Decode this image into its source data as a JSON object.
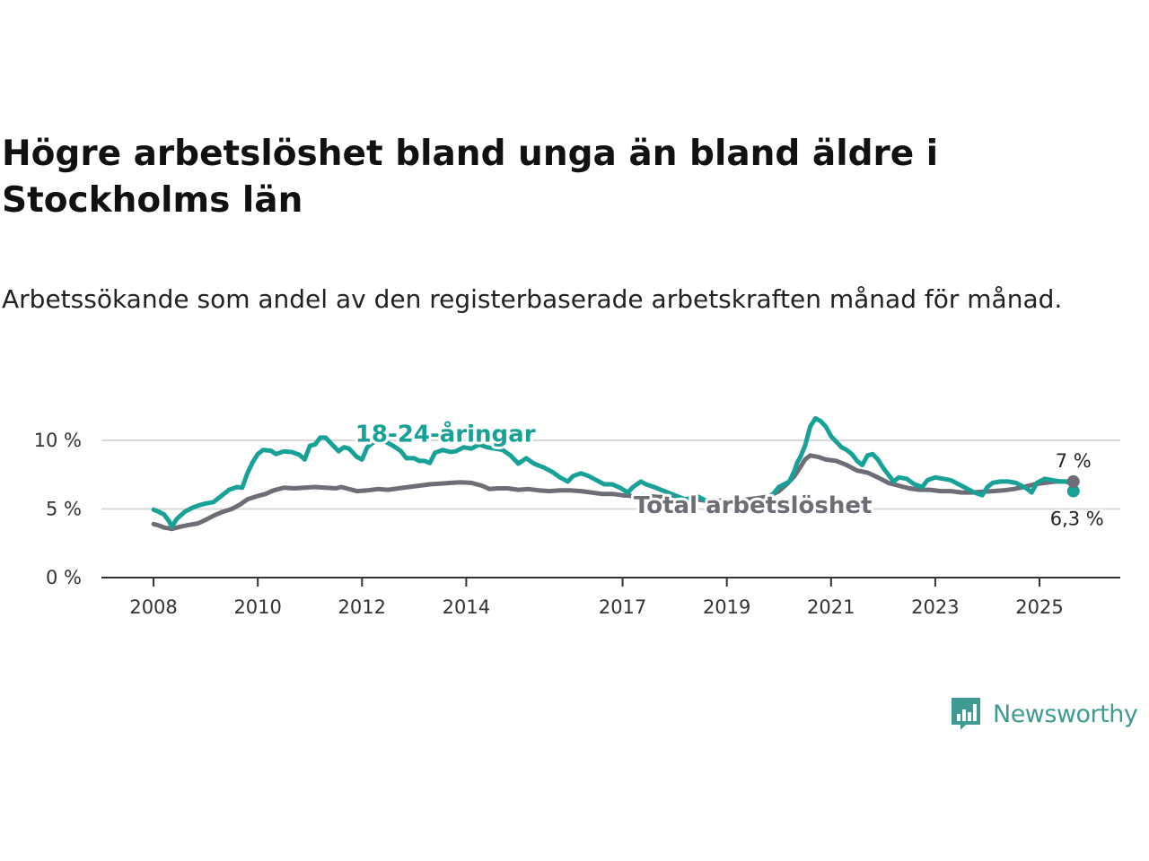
{
  "header": {
    "title": "Högre arbetslöshet bland unga än bland äldre i Stockholms län",
    "subtitle": "Arbetssökande som andel av den registerbaserade arbetskraften månad för månad."
  },
  "brand": {
    "name": "Newsworthy",
    "icon": "bar-chart-speech-bubble-icon",
    "color": "#3f9a92"
  },
  "chart_data": {
    "type": "line",
    "x_unit": "year",
    "xlim": [
      2007.0,
      2026.2
    ],
    "ylim": [
      0,
      10
    ],
    "y_ticks": [
      0,
      5,
      10
    ],
    "y_tick_labels": [
      "0 %",
      "5 %",
      "10 %"
    ],
    "x_ticks": [
      2008,
      2010,
      2012,
      2014,
      2017,
      2019,
      2021,
      2023,
      2025
    ],
    "x_tick_labels": [
      "2008",
      "2010",
      "2012",
      "2014",
      "2017",
      "2019",
      "2021",
      "2023",
      "2025"
    ],
    "grid": true,
    "series": [
      {
        "name": "18-24-åringar",
        "color": "#17a197",
        "end_label": "6,3 %",
        "points": [
          [
            2008.0,
            4.95
          ],
          [
            2008.1,
            4.8
          ],
          [
            2008.2,
            4.6
          ],
          [
            2008.3,
            4.1
          ],
          [
            2008.35,
            3.7
          ],
          [
            2008.45,
            4.3
          ],
          [
            2008.6,
            4.8
          ],
          [
            2008.75,
            5.1
          ],
          [
            2008.9,
            5.3
          ],
          [
            2009.0,
            5.4
          ],
          [
            2009.15,
            5.5
          ],
          [
            2009.3,
            5.95
          ],
          [
            2009.45,
            6.4
          ],
          [
            2009.6,
            6.6
          ],
          [
            2009.7,
            6.55
          ],
          [
            2009.8,
            7.6
          ],
          [
            2009.9,
            8.4
          ],
          [
            2010.0,
            9.0
          ],
          [
            2010.1,
            9.3
          ],
          [
            2010.25,
            9.25
          ],
          [
            2010.35,
            9.0
          ],
          [
            2010.5,
            9.2
          ],
          [
            2010.65,
            9.15
          ],
          [
            2010.8,
            8.95
          ],
          [
            2010.9,
            8.6
          ],
          [
            2011.0,
            9.6
          ],
          [
            2011.1,
            9.7
          ],
          [
            2011.2,
            10.2
          ],
          [
            2011.3,
            10.2
          ],
          [
            2011.45,
            9.6
          ],
          [
            2011.55,
            9.2
          ],
          [
            2011.65,
            9.5
          ],
          [
            2011.75,
            9.4
          ],
          [
            2011.9,
            8.8
          ],
          [
            2012.0,
            8.6
          ],
          [
            2012.1,
            9.5
          ],
          [
            2012.2,
            9.8
          ],
          [
            2012.3,
            10.1
          ],
          [
            2012.45,
            9.9
          ],
          [
            2012.6,
            9.6
          ],
          [
            2012.75,
            9.2
          ],
          [
            2012.85,
            8.7
          ],
          [
            2013.0,
            8.7
          ],
          [
            2013.1,
            8.5
          ],
          [
            2013.2,
            8.5
          ],
          [
            2013.3,
            8.35
          ],
          [
            2013.4,
            9.1
          ],
          [
            2013.55,
            9.3
          ],
          [
            2013.7,
            9.15
          ],
          [
            2013.8,
            9.2
          ],
          [
            2013.95,
            9.5
          ],
          [
            2014.1,
            9.4
          ],
          [
            2014.25,
            9.7
          ],
          [
            2014.4,
            9.5
          ],
          [
            2014.55,
            9.4
          ],
          [
            2014.7,
            9.3
          ],
          [
            2014.85,
            8.9
          ],
          [
            2015.0,
            8.3
          ],
          [
            2015.15,
            8.7
          ],
          [
            2015.3,
            8.3
          ],
          [
            2015.5,
            8.0
          ],
          [
            2015.65,
            7.7
          ],
          [
            2015.8,
            7.3
          ],
          [
            2015.95,
            7.0
          ],
          [
            2016.05,
            7.4
          ],
          [
            2016.2,
            7.6
          ],
          [
            2016.35,
            7.4
          ],
          [
            2016.5,
            7.1
          ],
          [
            2016.65,
            6.8
          ],
          [
            2016.8,
            6.8
          ],
          [
            2016.95,
            6.55
          ],
          [
            2017.1,
            6.2
          ],
          [
            2017.2,
            6.6
          ],
          [
            2017.35,
            7.0
          ],
          [
            2017.45,
            6.8
          ],
          [
            2017.6,
            6.6
          ],
          [
            2017.8,
            6.3
          ],
          [
            2018.0,
            6.0
          ],
          [
            2018.2,
            5.7
          ],
          [
            2018.45,
            5.9
          ],
          [
            2018.65,
            5.5
          ],
          [
            2018.85,
            5.3
          ],
          [
            2019.05,
            5.4
          ],
          [
            2019.2,
            5.6
          ],
          [
            2019.45,
            5.4
          ],
          [
            2019.65,
            5.2
          ],
          [
            2019.85,
            5.9
          ],
          [
            2020.0,
            6.6
          ],
          [
            2020.1,
            6.8
          ],
          [
            2020.2,
            7.0
          ],
          [
            2020.3,
            7.8
          ],
          [
            2020.35,
            8.4
          ],
          [
            2020.4,
            8.7
          ],
          [
            2020.5,
            9.6
          ],
          [
            2020.6,
            11.0
          ],
          [
            2020.7,
            11.6
          ],
          [
            2020.8,
            11.4
          ],
          [
            2020.9,
            11.0
          ],
          [
            2021.0,
            10.3
          ],
          [
            2021.1,
            9.9
          ],
          [
            2021.2,
            9.5
          ],
          [
            2021.3,
            9.3
          ],
          [
            2021.4,
            9.0
          ],
          [
            2021.5,
            8.5
          ],
          [
            2021.6,
            8.2
          ],
          [
            2021.7,
            8.9
          ],
          [
            2021.8,
            9.0
          ],
          [
            2021.9,
            8.6
          ],
          [
            2022.0,
            8.0
          ],
          [
            2022.1,
            7.5
          ],
          [
            2022.2,
            7.0
          ],
          [
            2022.3,
            7.3
          ],
          [
            2022.45,
            7.2
          ],
          [
            2022.6,
            6.8
          ],
          [
            2022.75,
            6.6
          ],
          [
            2022.85,
            7.1
          ],
          [
            2023.0,
            7.3
          ],
          [
            2023.15,
            7.2
          ],
          [
            2023.3,
            7.1
          ],
          [
            2023.45,
            6.8
          ],
          [
            2023.6,
            6.5
          ],
          [
            2023.75,
            6.2
          ],
          [
            2023.9,
            6.0
          ],
          [
            2024.0,
            6.6
          ],
          [
            2024.1,
            6.9
          ],
          [
            2024.25,
            7.0
          ],
          [
            2024.4,
            7.0
          ],
          [
            2024.55,
            6.9
          ],
          [
            2024.65,
            6.7
          ],
          [
            2024.75,
            6.5
          ],
          [
            2024.85,
            6.2
          ],
          [
            2024.95,
            6.9
          ],
          [
            2025.1,
            7.2
          ],
          [
            2025.25,
            7.1
          ],
          [
            2025.4,
            7.0
          ],
          [
            2025.5,
            7.0
          ],
          [
            2025.6,
            6.9
          ],
          [
            2025.65,
            6.3
          ]
        ]
      },
      {
        "name": "Total arbetslöshet",
        "color": "#6e6c76",
        "end_label": "7 %",
        "points": [
          [
            2008.0,
            3.9
          ],
          [
            2008.1,
            3.8
          ],
          [
            2008.2,
            3.65
          ],
          [
            2008.35,
            3.55
          ],
          [
            2008.5,
            3.7
          ],
          [
            2008.7,
            3.85
          ],
          [
            2008.85,
            3.95
          ],
          [
            2009.0,
            4.2
          ],
          [
            2009.15,
            4.5
          ],
          [
            2009.3,
            4.75
          ],
          [
            2009.5,
            5.0
          ],
          [
            2009.65,
            5.3
          ],
          [
            2009.8,
            5.7
          ],
          [
            2010.0,
            5.95
          ],
          [
            2010.15,
            6.1
          ],
          [
            2010.3,
            6.35
          ],
          [
            2010.5,
            6.55
          ],
          [
            2010.7,
            6.5
          ],
          [
            2010.9,
            6.55
          ],
          [
            2011.1,
            6.6
          ],
          [
            2011.3,
            6.55
          ],
          [
            2011.5,
            6.5
          ],
          [
            2011.6,
            6.6
          ],
          [
            2011.7,
            6.5
          ],
          [
            2011.9,
            6.3
          ],
          [
            2012.1,
            6.35
          ],
          [
            2012.3,
            6.45
          ],
          [
            2012.5,
            6.4
          ],
          [
            2012.7,
            6.5
          ],
          [
            2012.9,
            6.6
          ],
          [
            2013.1,
            6.7
          ],
          [
            2013.3,
            6.8
          ],
          [
            2013.5,
            6.85
          ],
          [
            2013.7,
            6.9
          ],
          [
            2013.9,
            6.95
          ],
          [
            2014.1,
            6.9
          ],
          [
            2014.3,
            6.7
          ],
          [
            2014.45,
            6.45
          ],
          [
            2014.6,
            6.5
          ],
          [
            2014.8,
            6.5
          ],
          [
            2015.0,
            6.4
          ],
          [
            2015.2,
            6.45
          ],
          [
            2015.4,
            6.35
          ],
          [
            2015.6,
            6.3
          ],
          [
            2015.8,
            6.35
          ],
          [
            2016.0,
            6.35
          ],
          [
            2016.2,
            6.3
          ],
          [
            2016.4,
            6.2
          ],
          [
            2016.6,
            6.1
          ],
          [
            2016.8,
            6.1
          ],
          [
            2017.0,
            6.0
          ],
          [
            2017.2,
            5.95
          ],
          [
            2017.4,
            6.0
          ],
          [
            2017.6,
            5.9
          ],
          [
            2017.8,
            5.85
          ],
          [
            2018.0,
            5.8
          ],
          [
            2018.2,
            5.7
          ],
          [
            2018.4,
            5.7
          ],
          [
            2018.6,
            5.6
          ],
          [
            2018.8,
            5.6
          ],
          [
            2019.0,
            5.6
          ],
          [
            2019.2,
            5.6
          ],
          [
            2019.4,
            5.7
          ],
          [
            2019.6,
            5.8
          ],
          [
            2019.8,
            5.9
          ],
          [
            2020.0,
            6.3
          ],
          [
            2020.15,
            6.8
          ],
          [
            2020.3,
            7.4
          ],
          [
            2020.4,
            8.0
          ],
          [
            2020.5,
            8.6
          ],
          [
            2020.6,
            8.9
          ],
          [
            2020.75,
            8.8
          ],
          [
            2020.9,
            8.6
          ],
          [
            2021.1,
            8.5
          ],
          [
            2021.3,
            8.2
          ],
          [
            2021.5,
            7.8
          ],
          [
            2021.7,
            7.65
          ],
          [
            2021.9,
            7.3
          ],
          [
            2022.1,
            6.9
          ],
          [
            2022.3,
            6.7
          ],
          [
            2022.5,
            6.5
          ],
          [
            2022.7,
            6.4
          ],
          [
            2022.9,
            6.4
          ],
          [
            2023.1,
            6.3
          ],
          [
            2023.3,
            6.3
          ],
          [
            2023.5,
            6.2
          ],
          [
            2023.7,
            6.2
          ],
          [
            2023.9,
            6.25
          ],
          [
            2024.1,
            6.3
          ],
          [
            2024.3,
            6.35
          ],
          [
            2024.5,
            6.45
          ],
          [
            2024.7,
            6.6
          ],
          [
            2024.9,
            6.8
          ],
          [
            2025.1,
            6.9
          ],
          [
            2025.3,
            7.0
          ],
          [
            2025.5,
            7.0
          ],
          [
            2025.65,
            7.0
          ]
        ]
      }
    ],
    "annotations": [
      {
        "series": "18-24-åringar",
        "text": "18-24-åringar",
        "x": 2013.6,
        "y": 10.5
      },
      {
        "series": "Total arbetslöshet",
        "text": "Total arbetslöshet",
        "x": 2019.5,
        "y": 5.3
      }
    ]
  }
}
